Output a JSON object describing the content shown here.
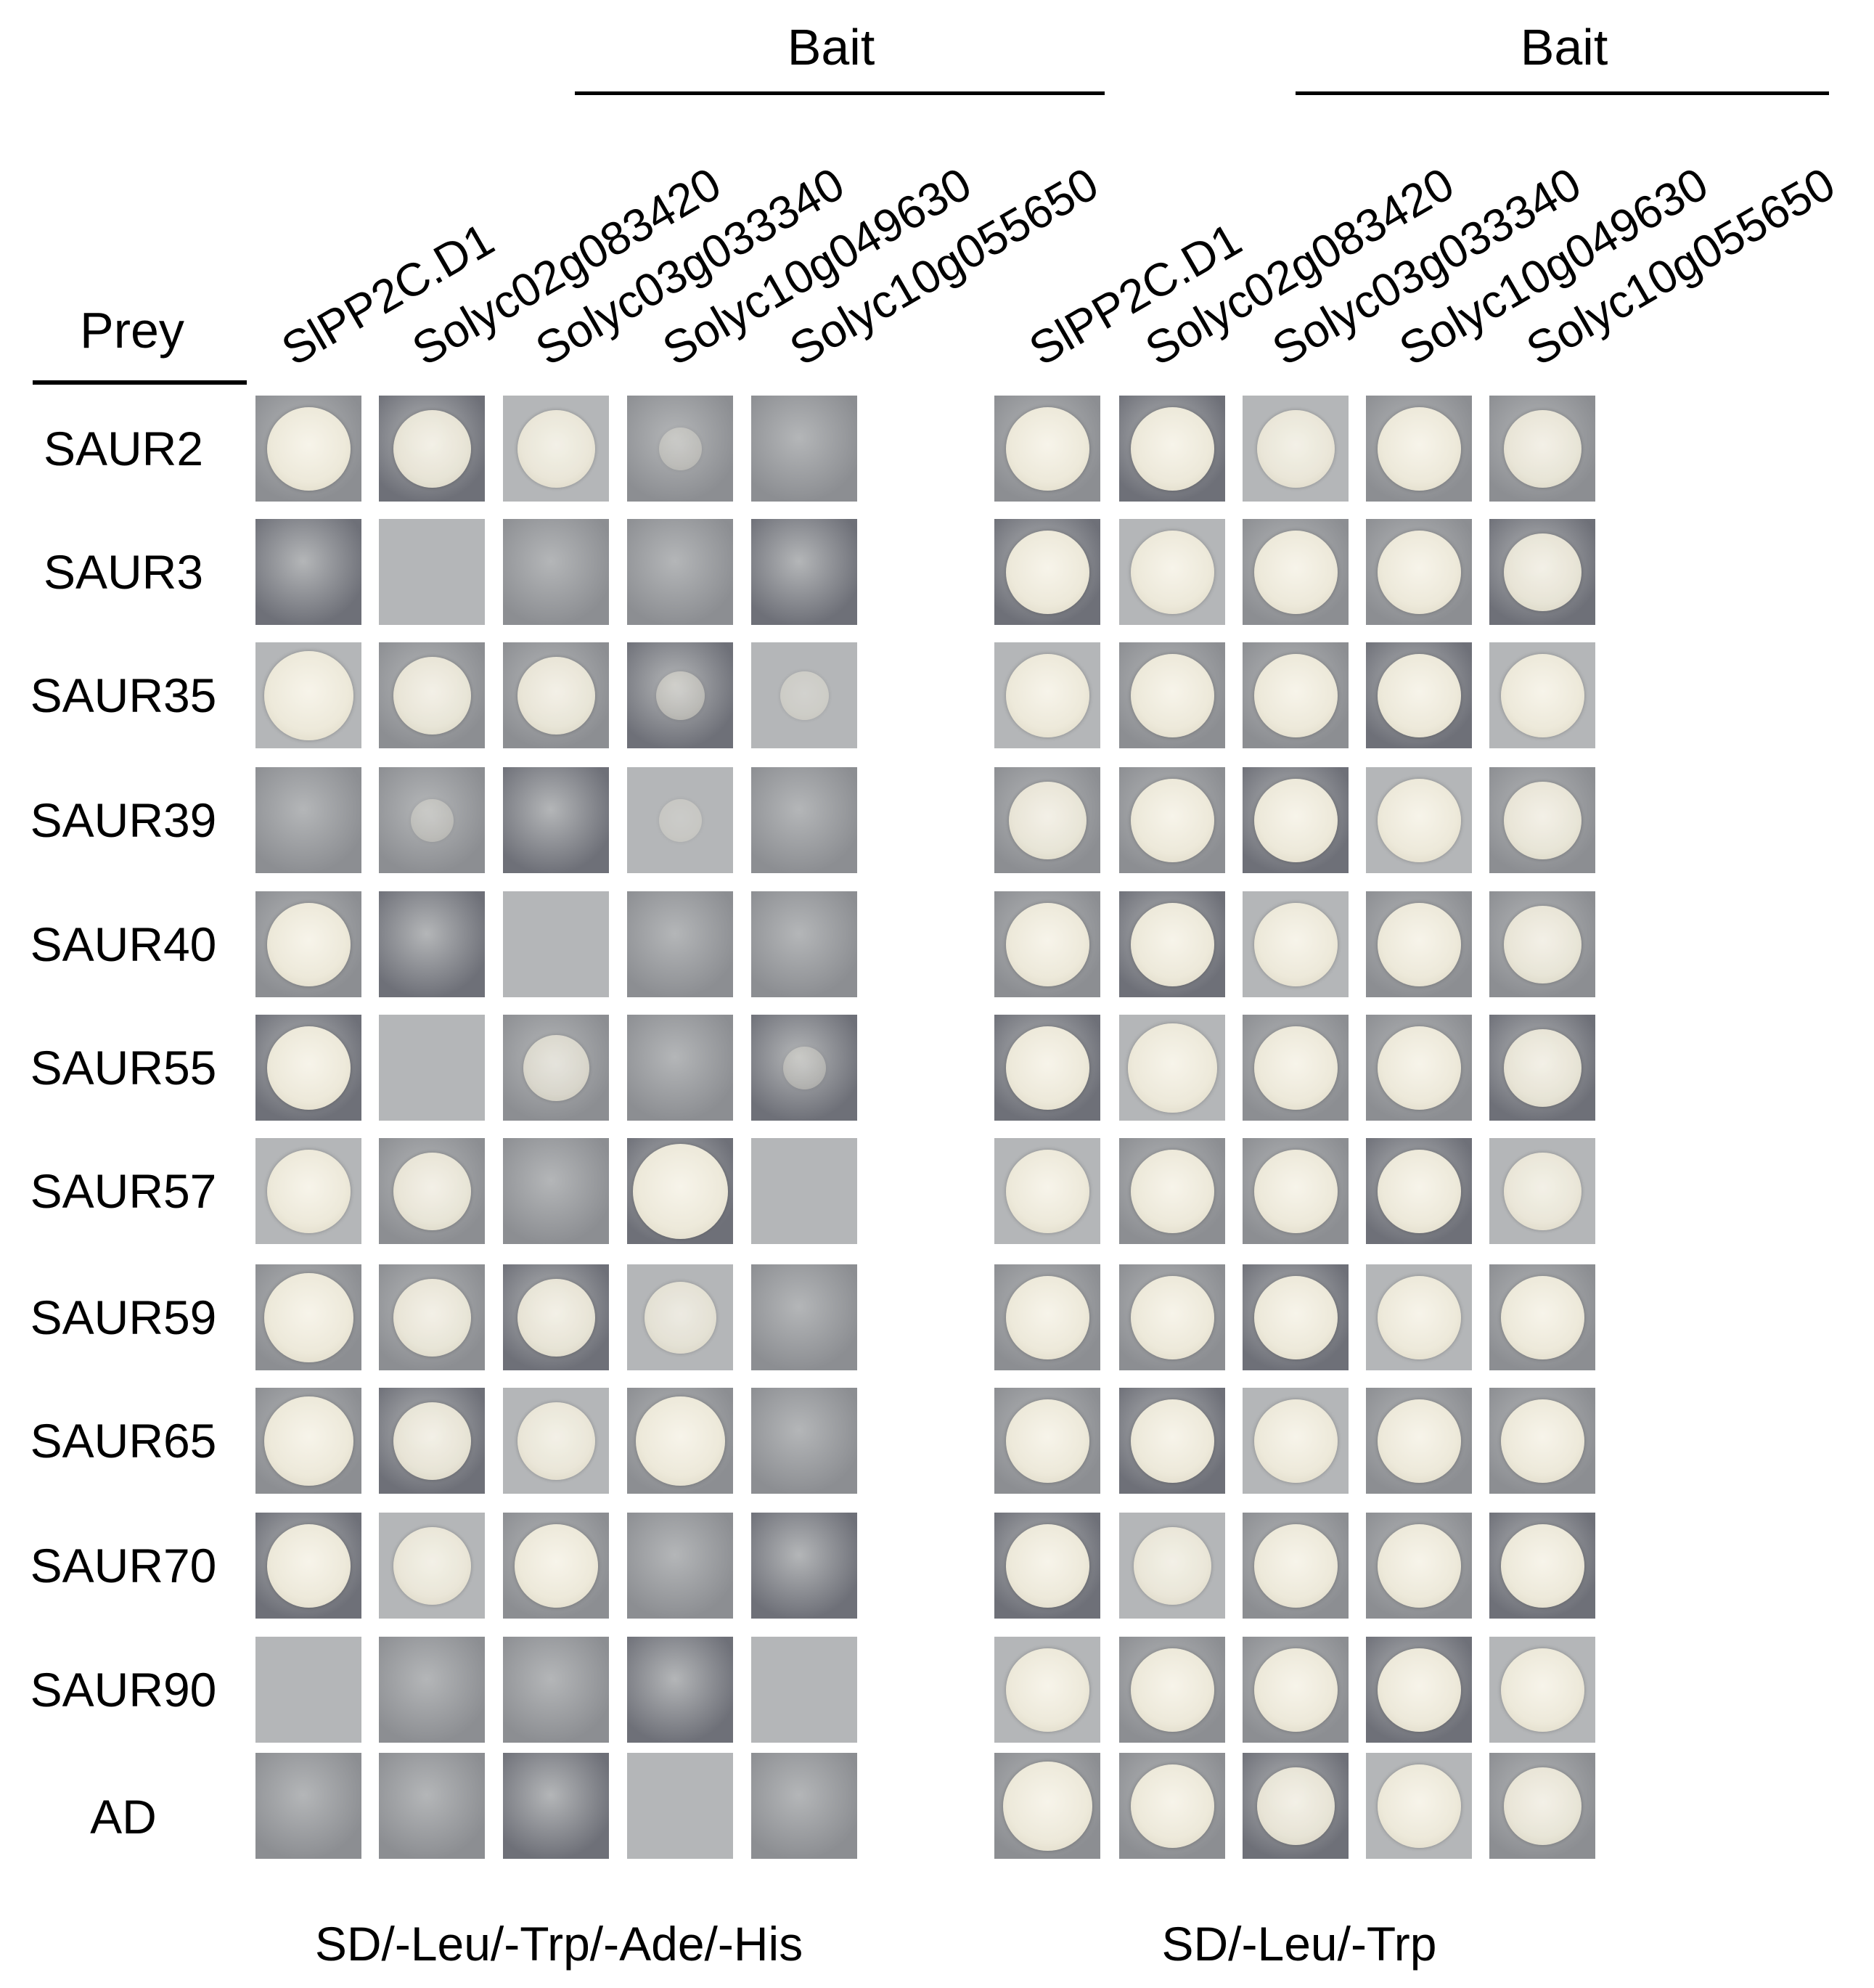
{
  "bait_label": "Bait",
  "prey_label": "Prey",
  "columns": [
    "SlPP2C.D1",
    "Solyc02g083420",
    "Solyc03g033340",
    "Solyc10g049630",
    "Solyc10g055650"
  ],
  "rows": [
    "SAUR2",
    "SAUR3",
    "SAUR35",
    "SAUR39",
    "SAUR40",
    "SAUR55",
    "SAUR57",
    "SAUR59",
    "SAUR65",
    "SAUR70",
    "SAUR90",
    "AD"
  ],
  "panels": [
    {
      "medium": "SD/-Leu/-Trp/-Ade/-His",
      "growth": [
        [
          0.8,
          0.7,
          0.7,
          0.1,
          0
        ],
        [
          0,
          0,
          0,
          0,
          0
        ],
        [
          0.9,
          0.7,
          0.7,
          0.2,
          0.2
        ],
        [
          0,
          0.1,
          0,
          0.1,
          0
        ],
        [
          0.8,
          0,
          0,
          0,
          0
        ],
        [
          0.8,
          0,
          0.5,
          0,
          0.1
        ],
        [
          0.8,
          0.7,
          0,
          1.0,
          0
        ],
        [
          0.9,
          0.7,
          0.7,
          0.6,
          0
        ],
        [
          0.9,
          0.7,
          0.7,
          0.9,
          0
        ],
        [
          0.8,
          0.7,
          0.8,
          0,
          0
        ],
        [
          0,
          0,
          0,
          0,
          0
        ],
        [
          0,
          0,
          0,
          0,
          0
        ]
      ]
    },
    {
      "medium": "SD/-Leu/-Trp",
      "growth": [
        [
          0.8,
          0.8,
          0.7,
          0.8,
          0.7
        ],
        [
          0.8,
          0.8,
          0.8,
          0.8,
          0.7
        ],
        [
          0.8,
          0.8,
          0.8,
          0.8,
          0.8
        ],
        [
          0.7,
          0.8,
          0.8,
          0.8,
          0.7
        ],
        [
          0.8,
          0.8,
          0.8,
          0.8,
          0.7
        ],
        [
          0.8,
          0.9,
          0.8,
          0.8,
          0.7
        ],
        [
          0.8,
          0.8,
          0.8,
          0.8,
          0.7
        ],
        [
          0.8,
          0.8,
          0.8,
          0.8,
          0.8
        ],
        [
          0.8,
          0.8,
          0.8,
          0.8,
          0.8
        ],
        [
          0.8,
          0.7,
          0.8,
          0.8,
          0.8
        ],
        [
          0.8,
          0.8,
          0.8,
          0.8,
          0.8
        ],
        [
          0.9,
          0.8,
          0.7,
          0.8,
          0.7
        ]
      ]
    }
  ],
  "colors": {
    "plate_dark": "#6e7078",
    "plate_mid": "#8c8e92",
    "plate_light": "#b4b6b8",
    "colony": "#ede9da"
  }
}
